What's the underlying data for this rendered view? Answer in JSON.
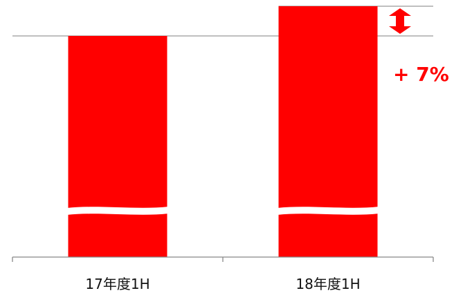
{
  "chart_data": {
    "type": "bar",
    "categories": [
      "17年度1H",
      "18年度1H"
    ],
    "values": [
      100,
      107
    ],
    "axis_break": true,
    "annotation": {
      "text": "+ 7%",
      "from": 0,
      "to": 1
    },
    "colors": {
      "bar": "#ff0000",
      "annotation": "#ff0000",
      "axis": "#888888",
      "reference_line": "#999999"
    },
    "grid": false,
    "legend": "none"
  }
}
